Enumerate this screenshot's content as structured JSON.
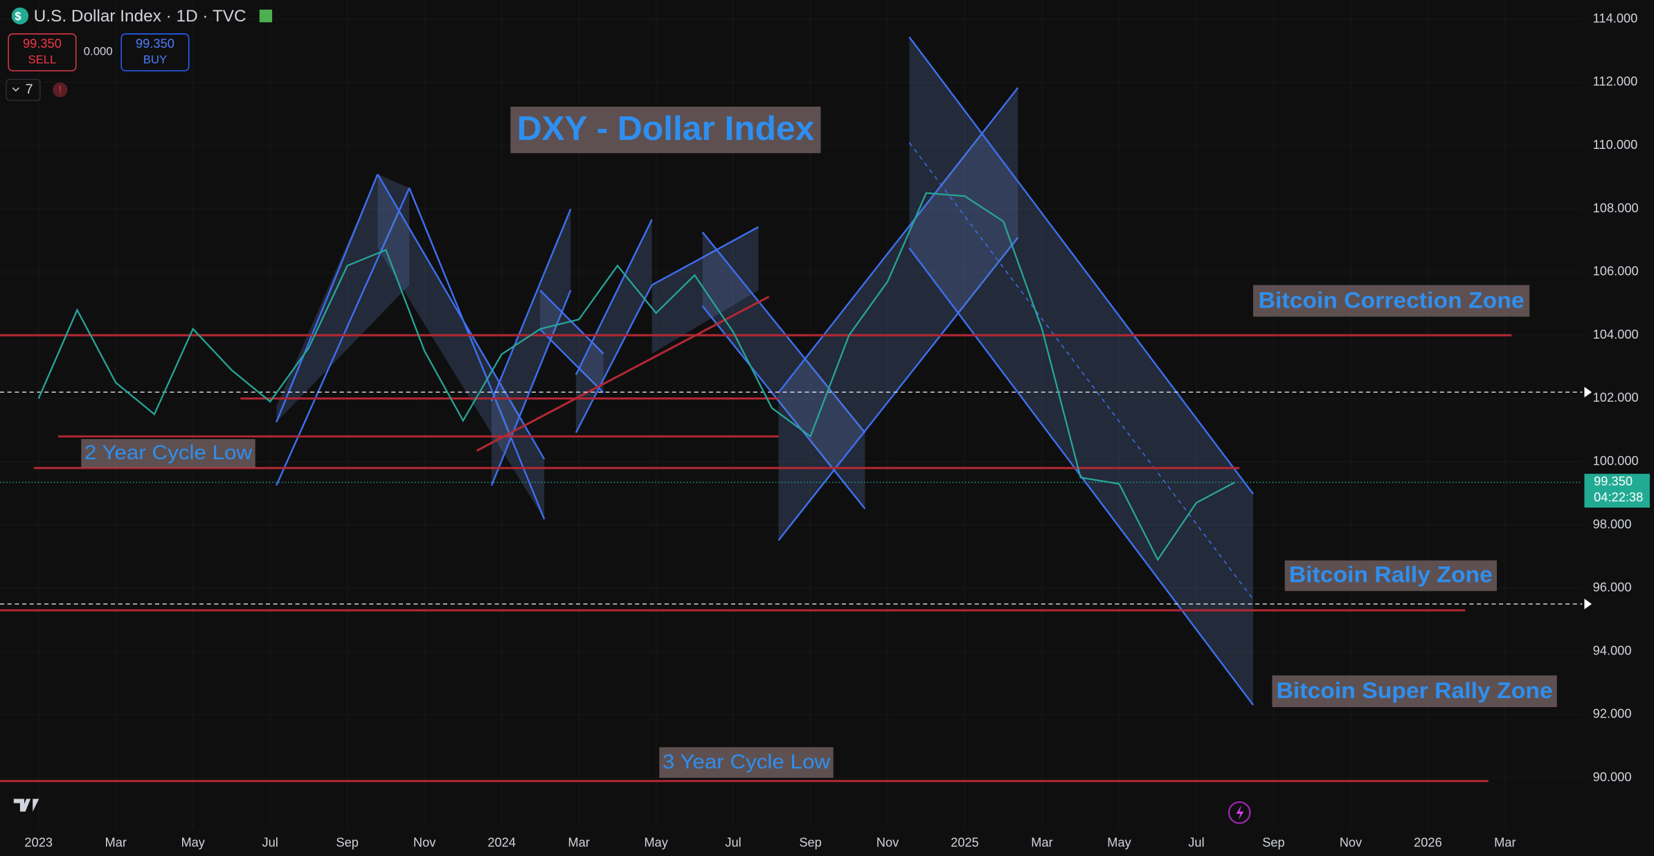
{
  "header": {
    "symbol": "U.S. Dollar Index · 1D · TVC",
    "sell_price": "99.350",
    "sell_label": "SELL",
    "spread": "0.000",
    "buy_price": "99.350",
    "buy_label": "BUY",
    "indicator_count": "7",
    "price_tag": "99.350",
    "countdown": "04:22:38"
  },
  "chart_data": {
    "type": "line",
    "title": "DXY - Dollar Index",
    "annotations": [
      "Bitcoin Correction Zone",
      "2 Year Cycle Low",
      "Bitcoin Rally Zone",
      "Bitcoin Super Rally Zone",
      "3 Year Cycle Low"
    ],
    "x": [
      "2023-01",
      "2023-02",
      "2023-03",
      "2023-04",
      "2023-05",
      "2023-06",
      "2023-07",
      "2023-08",
      "2023-09",
      "2023-10",
      "2023-11",
      "2023-12",
      "2024-01",
      "2024-02",
      "2024-03",
      "2024-04",
      "2024-05",
      "2024-06",
      "2024-07",
      "2024-08",
      "2024-09",
      "2024-10",
      "2024-11",
      "2024-12",
      "2025-01",
      "2025-02",
      "2025-03",
      "2025-04",
      "2025-05",
      "2025-06",
      "2025-07",
      "2025-08"
    ],
    "series": [
      {
        "name": "U.S. Dollar Index",
        "color": "#26a69a",
        "values": [
          102.0,
          104.8,
          102.5,
          101.5,
          104.2,
          102.9,
          101.9,
          103.6,
          106.2,
          106.7,
          103.5,
          101.3,
          103.4,
          104.2,
          104.5,
          106.2,
          104.7,
          105.9,
          104.1,
          101.7,
          100.8,
          104.0,
          105.7,
          108.5,
          108.4,
          107.6,
          104.2,
          99.5,
          99.3,
          96.9,
          98.7,
          99.35
        ]
      }
    ],
    "levels": [
      104,
      102,
      100.8,
      99.8,
      95.3,
      89.9
    ],
    "level_color": "#b22833",
    "alert_levels": [
      102.2,
      95.5
    ],
    "current_price": 99.35,
    "xlim": [
      "2022-12",
      "2026-05"
    ],
    "xticks": [
      {
        "value": "2023-01",
        "label": "2023"
      },
      {
        "value": "2023-03",
        "label": "Mar"
      },
      {
        "value": "2023-05",
        "label": "May"
      },
      {
        "value": "2023-07",
        "label": "Jul"
      },
      {
        "value": "2023-09",
        "label": "Sep"
      },
      {
        "value": "2023-11",
        "label": "Nov"
      },
      {
        "value": "2024-01",
        "label": "2024"
      },
      {
        "value": "2024-03",
        "label": "Mar"
      },
      {
        "value": "2024-05",
        "label": "May"
      },
      {
        "value": "2024-07",
        "label": "Jul"
      },
      {
        "value": "2024-09",
        "label": "Sep"
      },
      {
        "value": "2024-11",
        "label": "Nov"
      },
      {
        "value": "2025-01",
        "label": "2025"
      },
      {
        "value": "2025-03",
        "label": "Mar"
      },
      {
        "value": "2025-05",
        "label": "May"
      },
      {
        "value": "2025-07",
        "label": "Jul"
      },
      {
        "value": "2025-09",
        "label": "Sep"
      },
      {
        "value": "2025-11",
        "label": "Nov"
      },
      {
        "value": "2026-01",
        "label": "2026"
      },
      {
        "value": "2026-03",
        "label": "Mar"
      }
    ],
    "ylim": [
      88.4,
      114.6
    ],
    "yticks": [
      {
        "value": 90,
        "label": "90.000"
      },
      {
        "value": 92,
        "label": "92.000"
      },
      {
        "value": 94,
        "label": "94.000"
      },
      {
        "value": 96,
        "label": "96.000"
      },
      {
        "value": 98,
        "label": "98.000"
      },
      {
        "value": 100,
        "label": "100.000"
      },
      {
        "value": 102,
        "label": "102.000"
      },
      {
        "value": 104,
        "label": "104.000"
      },
      {
        "value": 106,
        "label": "106.000"
      },
      {
        "value": 108,
        "label": "108.000"
      },
      {
        "value": 110,
        "label": "110.000"
      },
      {
        "value": 112,
        "label": "112.000"
      },
      {
        "value": 114,
        "label": "114.000"
      }
    ]
  }
}
